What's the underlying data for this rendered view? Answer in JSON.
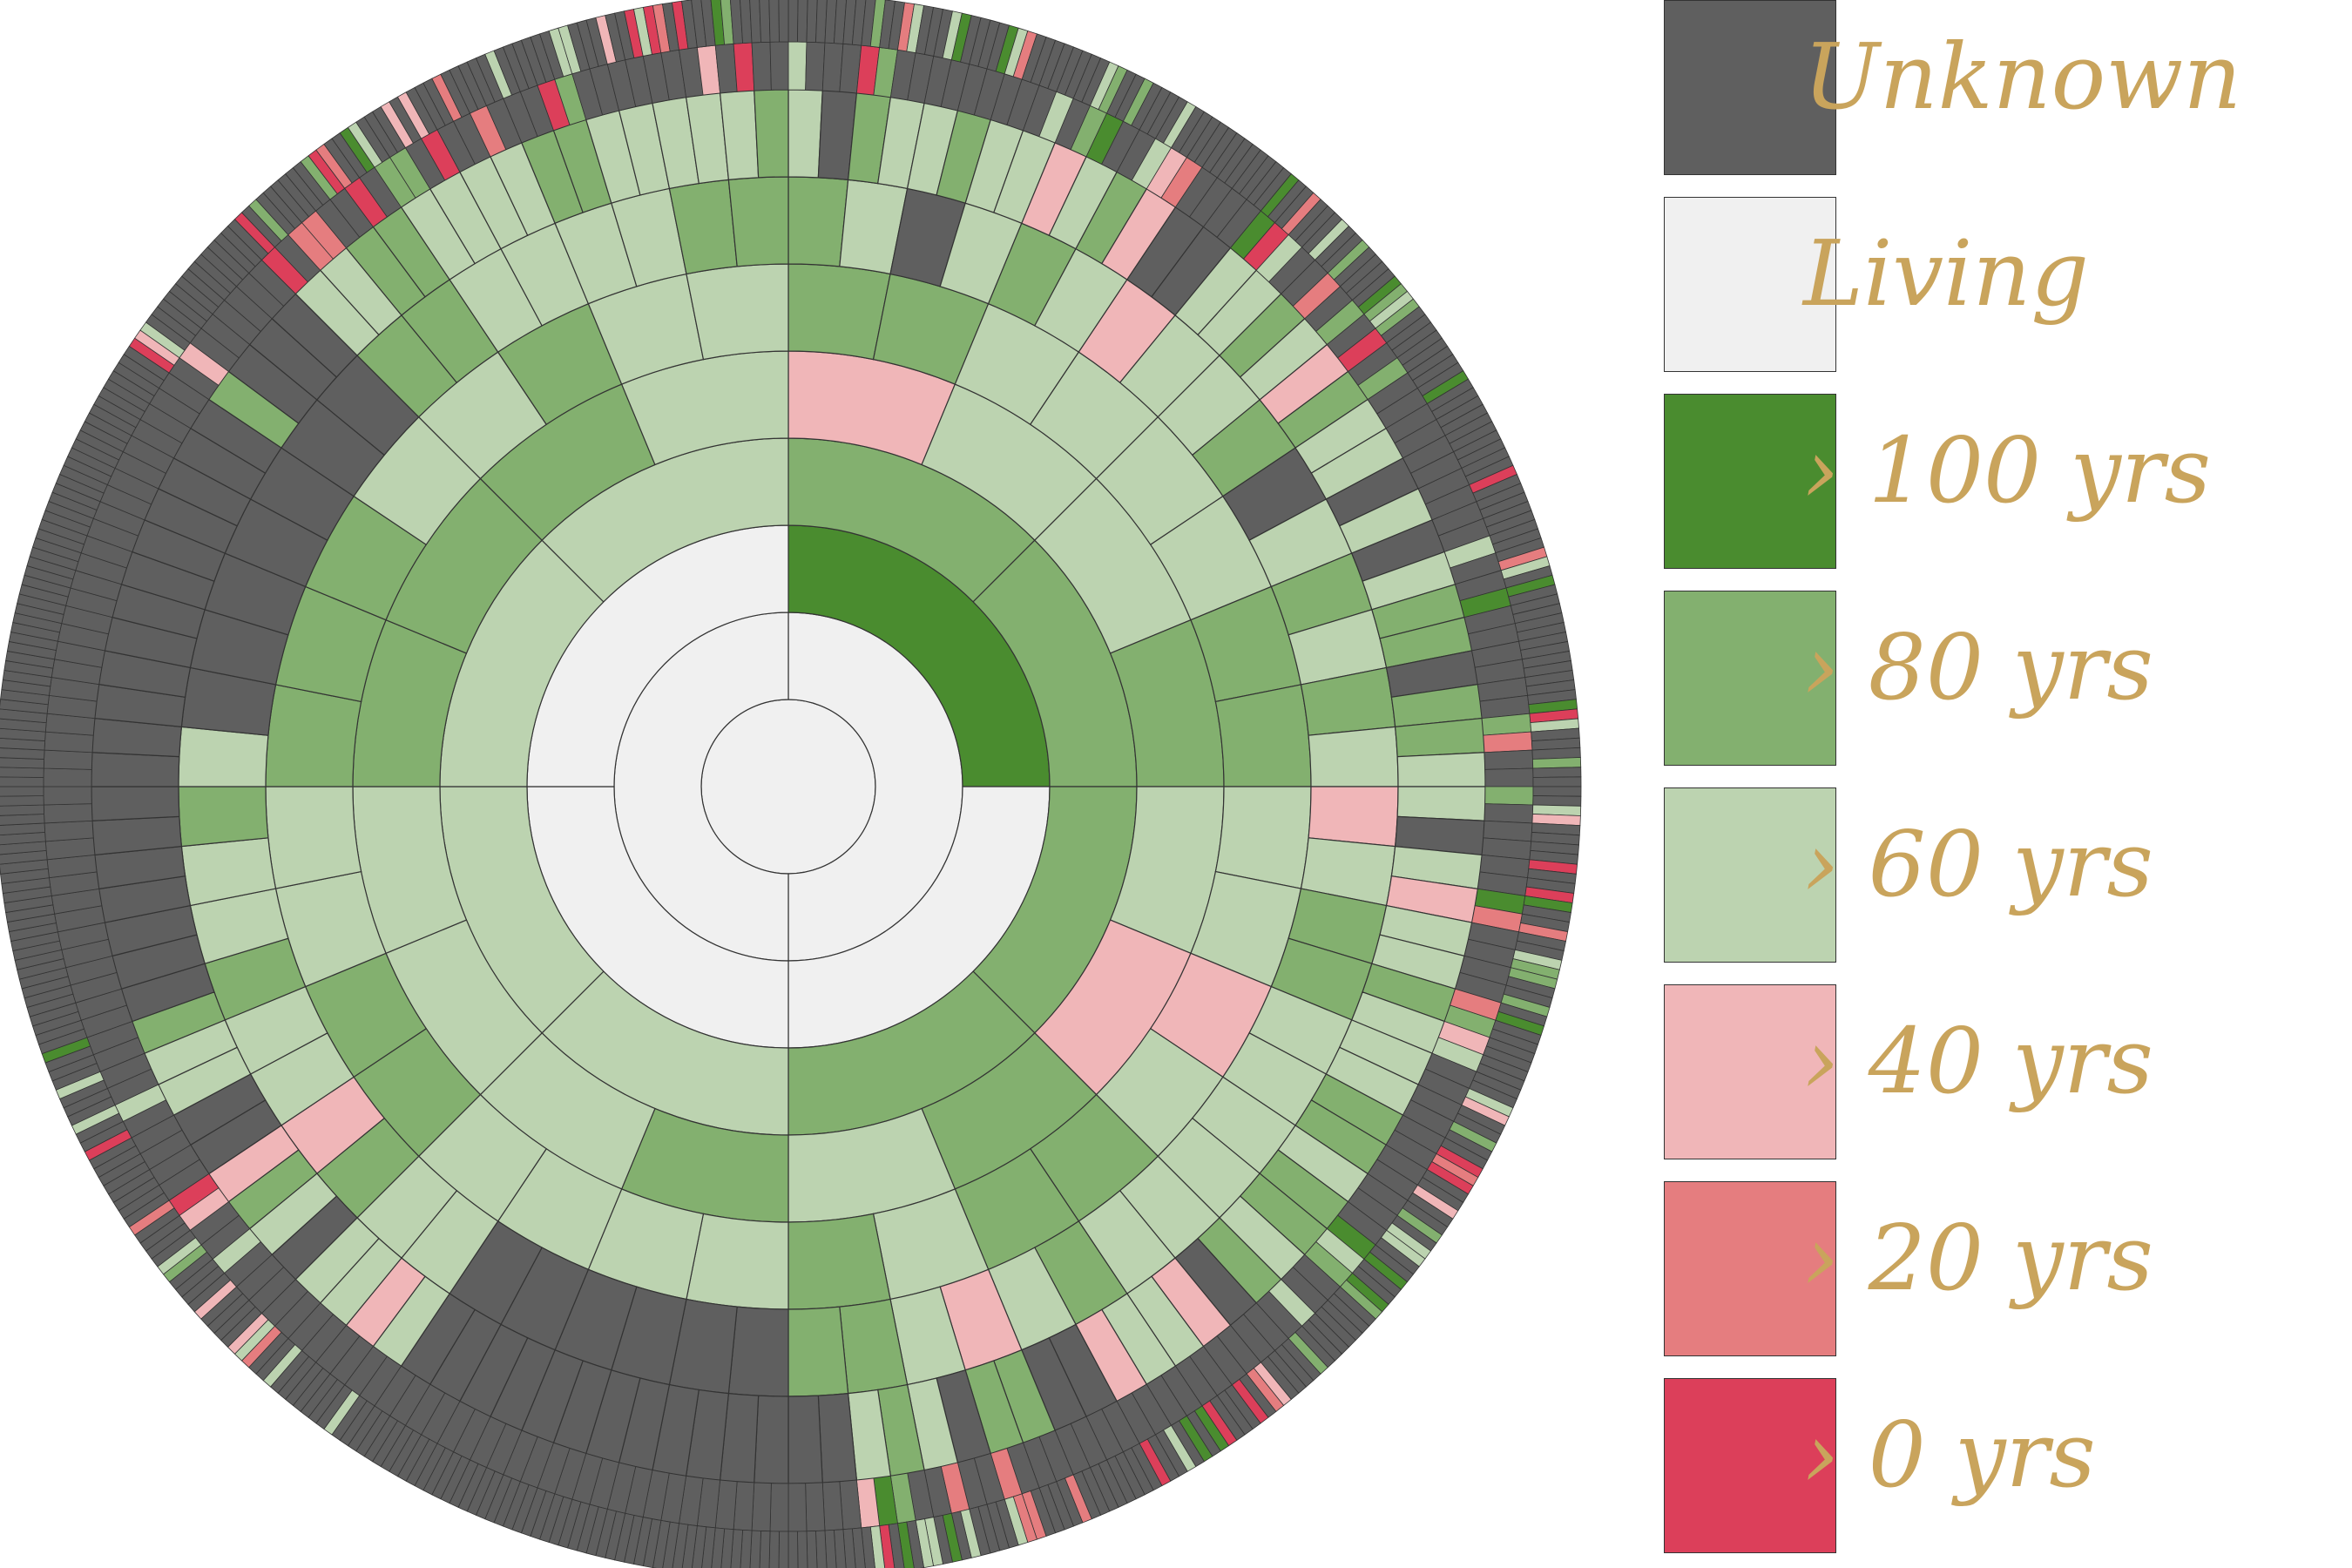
{
  "chart_data": {
    "type": "fan",
    "generations": 10,
    "legend": [
      {
        "key": "unknown",
        "label": "Unknown",
        "color": "#5f5f5f"
      },
      {
        "key": "living",
        "label": "Living",
        "color": "#f0f0f0"
      },
      {
        "key": "gt100",
        "label": "› 100 yrs",
        "color": "#4a8c2f"
      },
      {
        "key": "gt80",
        "label": "› 80 yrs",
        "color": "#83b06f"
      },
      {
        "key": "gt60",
        "label": "› 60 yrs",
        "color": "#bcd3b0"
      },
      {
        "key": "gt40",
        "label": "› 40 yrs",
        "color": "#f0b6b8"
      },
      {
        "key": "gt20",
        "label": "› 20 yrs",
        "color": "#e57d7f"
      },
      {
        "key": "gt0",
        "label": "› 0 yrs",
        "color": "#dc3f5a"
      }
    ],
    "rings": [
      [
        "L"
      ],
      [
        "L",
        "L"
      ],
      [
        "H",
        "L",
        "L",
        "L"
      ],
      [
        "8",
        "8",
        "8",
        "8",
        "6",
        "6",
        "6",
        "6"
      ],
      [
        "4",
        "6",
        "6",
        "8",
        "6",
        "4",
        "8",
        "6",
        "8",
        "6",
        "6",
        "6",
        "8",
        "8",
        "8",
        "6"
      ],
      [
        "8",
        "8",
        "6",
        "6",
        "6",
        "6",
        "8",
        "8",
        "6",
        "6",
        "4",
        "6",
        "8",
        "8",
        "6",
        "8",
        "6",
        "6",
        "6",
        "6",
        "8",
        "8",
        "6",
        "6",
        "8",
        "8",
        "8",
        "6",
        "6",
        "8",
        "6",
        "6"
      ],
      [
        "8",
        "6",
        "U",
        "6",
        "8",
        "6",
        "4",
        "6",
        "6",
        "8",
        "U",
        "6",
        "8",
        "6",
        "8",
        "6",
        "4",
        "6",
        "8",
        "8",
        "6",
        "6",
        "6",
        "6",
        "6",
        "6",
        "8",
        "6",
        "4",
        "6",
        "8",
        "8",
        "U",
        "U",
        "U",
        "U",
        "U",
        "U",
        "6",
        "6",
        "8",
        "4",
        "6",
        "6",
        "8",
        "6",
        "6",
        "8",
        "6",
        "U",
        "U",
        "U",
        "U",
        "U",
        "U",
        "U",
        "8",
        "8",
        "6",
        "6",
        "6",
        "6",
        "8",
        "8"
      ],
      [
        "6",
        "U",
        "8",
        "6",
        "6",
        "8",
        "6",
        "6",
        "4",
        "6",
        "8",
        "4",
        "U",
        "U",
        "6",
        "6",
        "8",
        "6",
        "4",
        "8",
        "6",
        "6",
        "U",
        "6",
        "U",
        "6",
        "8",
        "8",
        "U",
        "8",
        "8",
        "6",
        "6",
        "U",
        "6",
        "4",
        "6",
        "6",
        "8",
        "6",
        "6",
        "6",
        "8",
        "8",
        "6",
        "8",
        "8",
        "6",
        "8",
        "U",
        "4",
        "6",
        "6",
        "4",
        "U",
        "U",
        "8",
        "8",
        "U",
        "6",
        "8",
        "6",
        "U",
        "U",
        "U",
        "U",
        "U",
        "U",
        "U",
        "U",
        "U",
        "U",
        "U",
        "U",
        "U",
        "U",
        "6",
        "4",
        "6",
        "6",
        "U",
        "6",
        "8",
        "4",
        "U",
        "U",
        "6",
        "6",
        "8",
        "U",
        "U",
        "U",
        "U",
        "U",
        "U",
        "U",
        "U",
        "U",
        "U",
        "U",
        "U",
        "U",
        "U",
        "U",
        "U",
        "U",
        "U",
        "U",
        "8",
        "U",
        "U",
        "U",
        "6",
        "6",
        "8",
        "8",
        "6",
        "6",
        "6",
        "6",
        "8",
        "8",
        "6",
        "6",
        "6",
        "6",
        "6",
        "8"
      ],
      [
        "fill"
      ],
      [
        "fill"
      ]
    ]
  }
}
